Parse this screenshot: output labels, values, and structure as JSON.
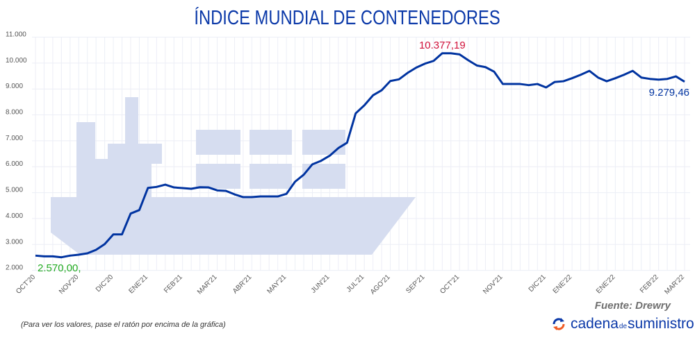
{
  "chart_data": {
    "type": "line",
    "title": "ÍNDICE MUNDIAL DE CONTENEDORES",
    "xlabel": "",
    "ylabel": "",
    "ylim": [
      2000,
      11000
    ],
    "y_ticks": [
      "2.000",
      "3.000",
      "4.000",
      "5.000",
      "6.000",
      "7.000",
      "8.000",
      "9.000",
      "10.000",
      "11.000"
    ],
    "y_tick_values": [
      2000,
      3000,
      4000,
      5000,
      6000,
      7000,
      8000,
      9000,
      10000,
      11000
    ],
    "x_tick_labels": [
      {
        "index": 0,
        "label": "OCT'20"
      },
      {
        "index": 5,
        "label": "NOV'20"
      },
      {
        "index": 9,
        "label": "DIC'20"
      },
      {
        "index": 13,
        "label": "ENE'21"
      },
      {
        "index": 17,
        "label": "FEB'21"
      },
      {
        "index": 21,
        "label": "MAR'21"
      },
      {
        "index": 25,
        "label": "ABR'21"
      },
      {
        "index": 29,
        "label": "MAY'21"
      },
      {
        "index": 34,
        "label": "JUN'21"
      },
      {
        "index": 38,
        "label": "JUL'21"
      },
      {
        "index": 41,
        "label": "AGO'21"
      },
      {
        "index": 45,
        "label": "SEP'21"
      },
      {
        "index": 49,
        "label": "OCT'21"
      },
      {
        "index": 54,
        "label": "NOV'21"
      },
      {
        "index": 59,
        "label": "DIC'21"
      },
      {
        "index": 62,
        "label": "ENE'22"
      },
      {
        "index": 67,
        "label": "ENE'22"
      },
      {
        "index": 72,
        "label": "FEB'22"
      },
      {
        "index": 75,
        "label": "MAR'22"
      }
    ],
    "grid": true,
    "series": [
      {
        "color": "#0033a0",
        "values": [
          2570,
          2543,
          2543,
          2506,
          2570,
          2605,
          2659,
          2793,
          3015,
          3390,
          3390,
          4193,
          4327,
          5183,
          5221,
          5309,
          5202,
          5175,
          5149,
          5210,
          5202,
          5087,
          5068,
          4934,
          4827,
          4827,
          4854,
          4854,
          4854,
          4953,
          5424,
          5692,
          6094,
          6228,
          6426,
          6720,
          6924,
          8059,
          8369,
          8755,
          8950,
          9307,
          9371,
          9620,
          9826,
          9976,
          10083,
          10377.19,
          10377,
          10335,
          10110,
          9906,
          9842,
          9665,
          9191,
          9191,
          9191,
          9147,
          9191,
          9058,
          9271,
          9298,
          9415,
          9548,
          9698,
          9441,
          9298,
          9415,
          9548,
          9698,
          9441,
          9388,
          9361,
          9388,
          9486,
          9279.46
        ]
      }
    ],
    "annotations": [
      {
        "index": 0,
        "label": "2.570,00,",
        "color": "#22aa22"
      },
      {
        "index": 47,
        "label": "10.377,19",
        "color": "#d0103a"
      },
      {
        "index": 75,
        "label": "9.279,46",
        "color": "#0033a0"
      }
    ]
  },
  "note": "(Para ver los valores, pase el ratón por encima de la gráfica)",
  "source": "Fuente: Drewry",
  "brand": {
    "part1": "cadena",
    "part2": "de",
    "part3": "suministro",
    "logo_colors": [
      "#0a38a8",
      "#f05a22"
    ]
  },
  "background_color": "#d6ddf0"
}
